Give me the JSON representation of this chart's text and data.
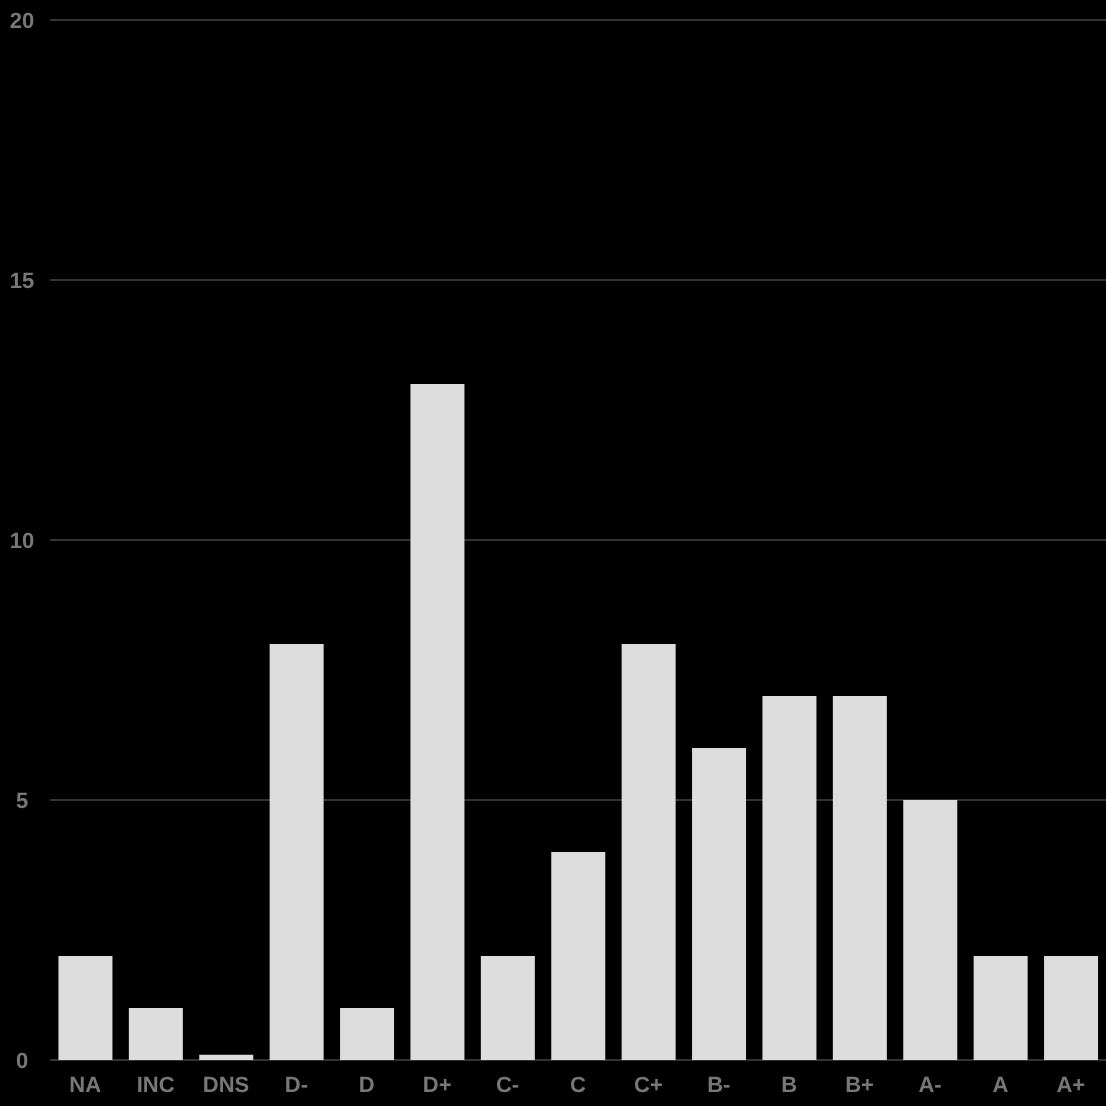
{
  "chart_data": {
    "type": "bar",
    "categories": [
      "NA",
      "INC",
      "DNS",
      "D-",
      "D",
      "D+",
      "C-",
      "C",
      "C+",
      "B-",
      "B",
      "B+",
      "A-",
      "A",
      "A+"
    ],
    "values": [
      2,
      1,
      0.1,
      8,
      1,
      13,
      2,
      4,
      8,
      6,
      7,
      7,
      5,
      2,
      2
    ],
    "color": "#dddddd",
    "ylim": [
      0,
      20
    ],
    "yticks": [
      0,
      5,
      10,
      15,
      20
    ],
    "grid": "y"
  }
}
